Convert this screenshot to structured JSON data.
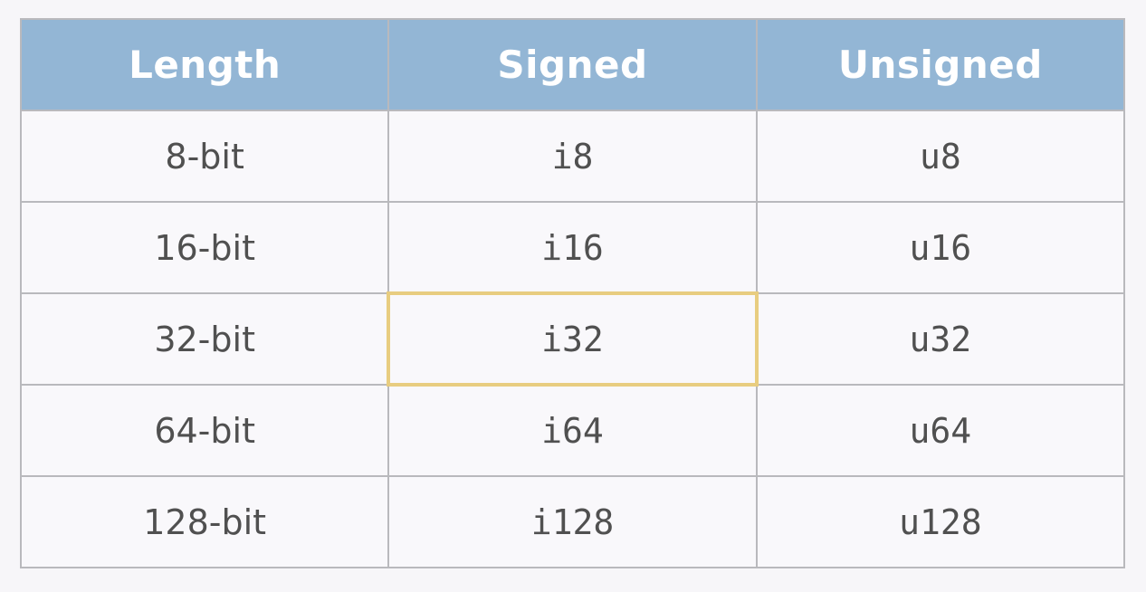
{
  "table": {
    "headers": {
      "length": "Length",
      "signed": "Signed",
      "unsigned": "Unsigned"
    },
    "rows": [
      {
        "length": "8-bit",
        "signed": "i8",
        "unsigned": "u8"
      },
      {
        "length": "16-bit",
        "signed": "i16",
        "unsigned": "u16"
      },
      {
        "length": "32-bit",
        "signed": "i32",
        "unsigned": "u32"
      },
      {
        "length": "64-bit",
        "signed": "i64",
        "unsigned": "u64"
      },
      {
        "length": "128-bit",
        "signed": "i128",
        "unsigned": "u128"
      }
    ],
    "highlighted_cell": {
      "row": 2,
      "column": "signed"
    },
    "colors": {
      "header_background": "#93b6d5",
      "header_text": "#ffffff",
      "grid_line": "#b9b9bd",
      "highlight_border": "#e8cd80",
      "cell_text": "#505050"
    }
  }
}
